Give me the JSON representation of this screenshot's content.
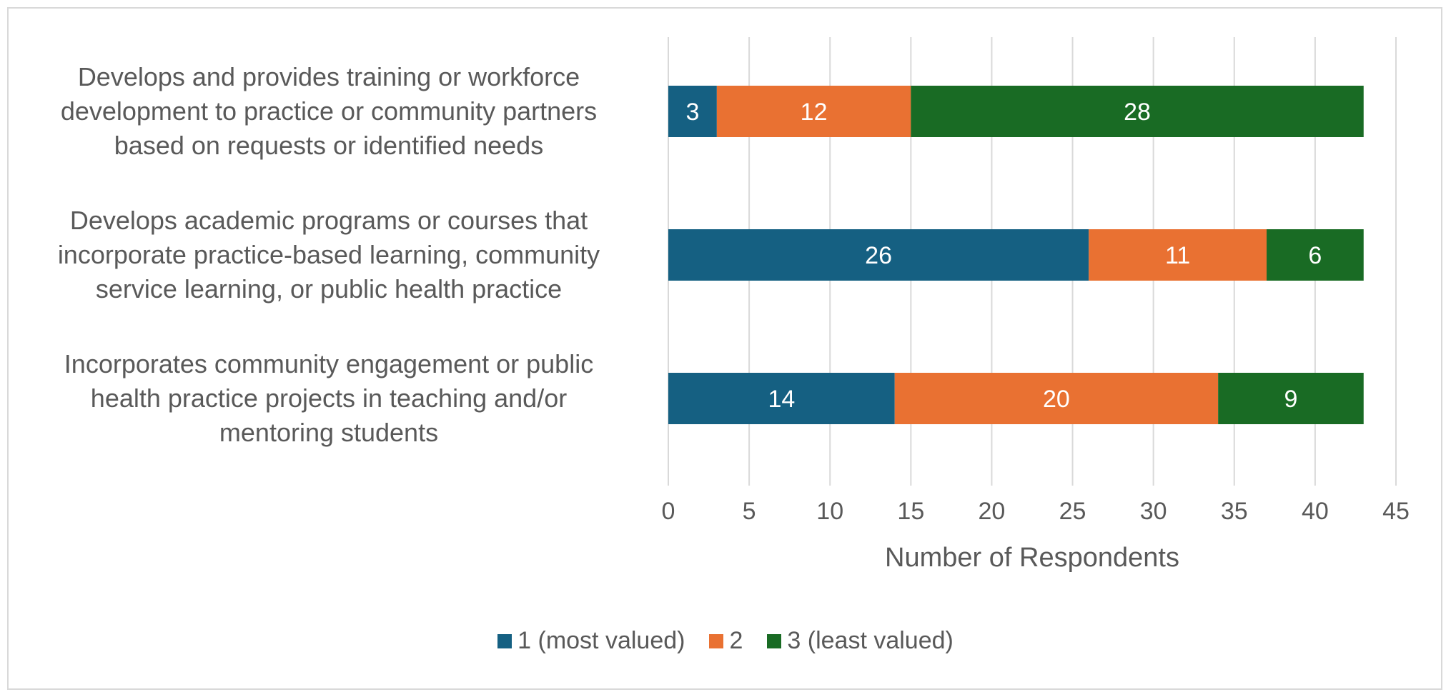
{
  "chart_data": {
    "type": "bar",
    "orientation": "horizontal",
    "stacked": true,
    "categories": [
      "Develops and provides training or workforce development to practice or community partners based on requests or identified needs",
      "Develops academic programs or courses that incorporate practice-based learning, community service learning, or public health practice",
      "Incorporates community engagement or public health practice projects in teaching and/or mentoring students"
    ],
    "category_lines": [
      [
        "Develops and provides training or workforce",
        "development to practice or community partners",
        "based on requests or identified needs"
      ],
      [
        "Develops academic programs or courses that",
        "incorporate practice-based learning, community",
        "service learning, or public health practice"
      ],
      [
        "Incorporates community engagement or public",
        "health practice projects in teaching and/or",
        "mentoring students"
      ]
    ],
    "series": [
      {
        "name": "1 (most valued)",
        "color": "#156082",
        "values": [
          3,
          26,
          14
        ]
      },
      {
        "name": "2",
        "color": "#E97132",
        "values": [
          12,
          11,
          20
        ]
      },
      {
        "name": "3 (least valued)",
        "color": "#196B24",
        "values": [
          28,
          6,
          9
        ]
      }
    ],
    "xlabel": "Number of Respondents",
    "xlim": [
      0,
      45
    ],
    "xticks": [
      0,
      5,
      10,
      15,
      20,
      25,
      30,
      35,
      40,
      45
    ],
    "grid": true,
    "legend_position": "bottom",
    "data_labels": true
  }
}
